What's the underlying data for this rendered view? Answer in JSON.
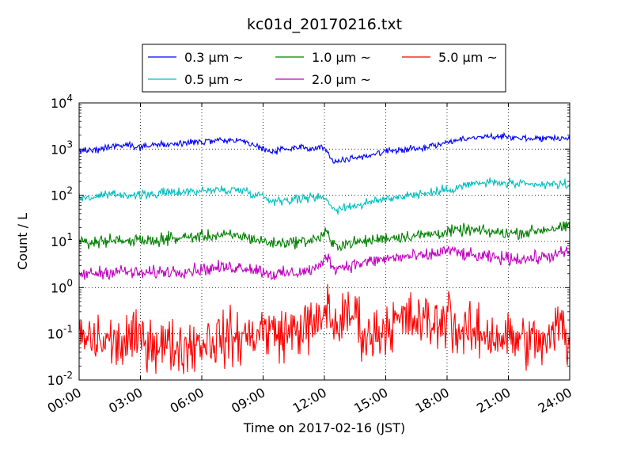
{
  "chart_data": {
    "type": "line",
    "title": "kc01d_20170216.txt",
    "xlabel": "Time on 2017-02-16 (JST)",
    "ylabel": "Count / L",
    "yscale": "log",
    "xlim": [
      "00:00",
      "24:00"
    ],
    "ylim": [
      0.01,
      10000
    ],
    "grid": "dotted",
    "legend_position": "top",
    "x_ticks": [
      "00:00",
      "03:00",
      "06:00",
      "09:00",
      "12:00",
      "15:00",
      "18:00",
      "21:00",
      "24:00"
    ],
    "y_ticks": [
      {
        "value": 0.01,
        "base": "10",
        "exp": "-2"
      },
      {
        "value": 0.1,
        "base": "10",
        "exp": "-1"
      },
      {
        "value": 1,
        "base": "10",
        "exp": "0"
      },
      {
        "value": 10,
        "base": "10",
        "exp": "1"
      },
      {
        "value": 100,
        "base": "10",
        "exp": "2"
      },
      {
        "value": 1000,
        "base": "10",
        "exp": "3"
      },
      {
        "value": 10000,
        "base": "10",
        "exp": "4"
      }
    ],
    "series": [
      {
        "name": "0.3 μm ~",
        "color": "#0000ff",
        "x_hours": [
          0,
          1,
          2,
          3,
          4,
          5,
          6,
          7,
          8,
          9,
          9.5,
          10,
          11,
          11.8,
          12.1,
          12.3,
          12.6,
          13,
          14,
          15,
          16,
          17,
          18,
          19,
          20,
          21,
          22,
          23,
          24
        ],
        "values": [
          900,
          1000,
          1250,
          1150,
          1250,
          1300,
          1450,
          1500,
          1550,
          1000,
          900,
          1000,
          1050,
          1150,
          1000,
          600,
          550,
          600,
          700,
          900,
          1000,
          1100,
          1400,
          1700,
          1900,
          1850,
          1700,
          1750,
          1750
        ],
        "noise": 0.05
      },
      {
        "name": "0.5 μm ~",
        "color": "#00bfbf",
        "x_hours": [
          0,
          1,
          2,
          3,
          4,
          5,
          6,
          7,
          8,
          9,
          9.5,
          10,
          11,
          11.8,
          12.1,
          12.3,
          12.6,
          13,
          14,
          15,
          16,
          17,
          18,
          19,
          20,
          21,
          22,
          23,
          24
        ],
        "values": [
          85,
          95,
          105,
          100,
          110,
          120,
          125,
          130,
          130,
          95,
          75,
          80,
          85,
          95,
          90,
          55,
          50,
          55,
          65,
          85,
          100,
          110,
          130,
          170,
          190,
          180,
          165,
          170,
          175
        ],
        "noise": 0.07
      },
      {
        "name": "1.0 μm ~",
        "color": "#008000",
        "x_hours": [
          0,
          1,
          2,
          3,
          4,
          5,
          6,
          7,
          8,
          9,
          9.5,
          10,
          11,
          11.8,
          12.1,
          12.3,
          12.6,
          13,
          14,
          15,
          16,
          17,
          18,
          19,
          20,
          21,
          22,
          23,
          24
        ],
        "values": [
          9,
          10,
          11,
          10,
          11,
          12,
          13,
          13.5,
          13,
          10,
          9,
          9.5,
          10,
          12,
          18,
          9,
          8,
          9,
          10,
          12,
          13,
          14,
          16,
          18,
          16,
          15,
          16,
          19,
          20
        ],
        "noise": 0.09
      },
      {
        "name": "2.0 μm ~",
        "color": "#bf00bf",
        "x_hours": [
          0,
          1,
          2,
          3,
          4,
          5,
          6,
          7,
          8,
          9,
          9.5,
          10,
          11,
          11.8,
          12.1,
          12.3,
          12.6,
          13,
          14,
          15,
          16,
          17,
          18,
          19,
          20,
          21,
          22,
          23,
          24
        ],
        "values": [
          1.9,
          2.1,
          2.3,
          2.0,
          2.2,
          2.3,
          2.5,
          2.7,
          2.8,
          2.3,
          1.9,
          2.0,
          2.2,
          2.8,
          5.5,
          3.2,
          2.7,
          2.9,
          3.5,
          4.2,
          4.7,
          4.8,
          6.5,
          5.0,
          4.5,
          4.3,
          4.2,
          4.8,
          6.0
        ],
        "noise": 0.1
      },
      {
        "name": "5.0 μm ~",
        "color": "#ff0000",
        "x_hours": [
          0,
          1,
          2,
          3,
          4,
          5,
          6,
          7,
          8,
          9,
          10,
          11,
          11.8,
          12.1,
          12.4,
          13,
          13.5,
          14,
          14.5,
          15,
          16,
          17,
          17.9,
          18.05,
          18.3,
          19,
          20,
          21,
          22,
          23,
          23.5,
          24
        ],
        "values": [
          0.08,
          0.07,
          0.06,
          0.08,
          0.06,
          0.05,
          0.07,
          0.08,
          0.08,
          0.12,
          0.1,
          0.14,
          0.15,
          0.5,
          0.15,
          0.2,
          0.3,
          0.08,
          0.1,
          0.15,
          0.2,
          0.18,
          0.15,
          0.8,
          0.12,
          0.1,
          0.1,
          0.08,
          0.07,
          0.06,
          0.2,
          0.05
        ],
        "noise": 0.42
      }
    ]
  }
}
